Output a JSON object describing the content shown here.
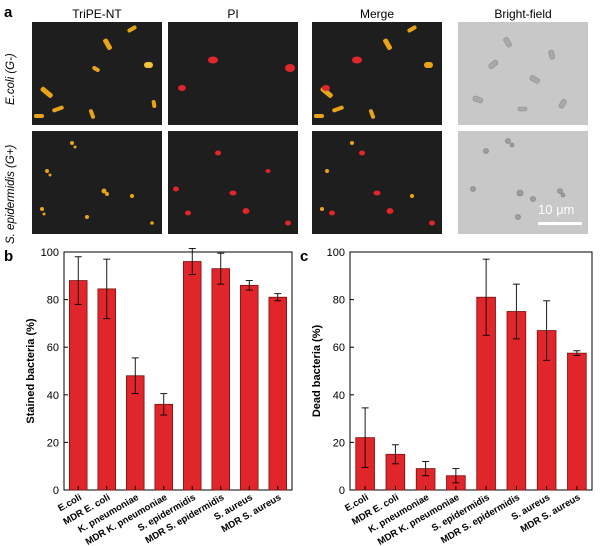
{
  "panel_a": {
    "letter": "a",
    "columns": [
      "TriPE-NT",
      "PI",
      "Merge",
      "Bright-field"
    ],
    "rows": [
      "E.coli (G-)",
      "S. epidermidis (G+)"
    ],
    "scale_bar": "10 μm",
    "colors": {
      "tripe": "#e8a31a",
      "pi": "#e0262a",
      "background": "#1e1e1e",
      "brightfield": "#c8c8c8"
    }
  },
  "panel_b": {
    "letter": "b"
  },
  "panel_c": {
    "letter": "c"
  },
  "chart_data": [
    {
      "type": "bar",
      "categories": [
        "E.coli",
        "MDR E. coli",
        "K. pneumoniae",
        "MDR K. pneumoniae",
        "S. epidermidis",
        "MDR S. epidermidis",
        "S. aureus",
        "MDR S. aureus"
      ],
      "values": [
        88,
        84.5,
        48,
        36,
        96,
        93,
        86,
        81
      ],
      "errors": [
        10,
        12.5,
        7.5,
        4.5,
        5.5,
        6.5,
        2,
        1.5
      ],
      "ylabel": "Stained bacteria (%)",
      "ylim": [
        0,
        100
      ],
      "yticks": [
        0,
        20,
        40,
        60,
        80,
        100
      ],
      "color": "#e0262a"
    },
    {
      "type": "bar",
      "categories": [
        "E.coli",
        "MDR E. coli",
        "K. pneumoniae",
        "MDR K. pneumoniae",
        "S. epidermidis",
        "MDR S. epidermidis",
        "S. aureus",
        "MDR S. aureus"
      ],
      "values": [
        22,
        15,
        9,
        6,
        81,
        75,
        67,
        57.5
      ],
      "errors": [
        12.5,
        4,
        3,
        3,
        16,
        11.5,
        12.5,
        1
      ],
      "ylabel": "Dead bacteria (%)",
      "ylim": [
        0,
        100
      ],
      "yticks": [
        0,
        20,
        40,
        60,
        80,
        100
      ],
      "color": "#e0262a"
    }
  ]
}
